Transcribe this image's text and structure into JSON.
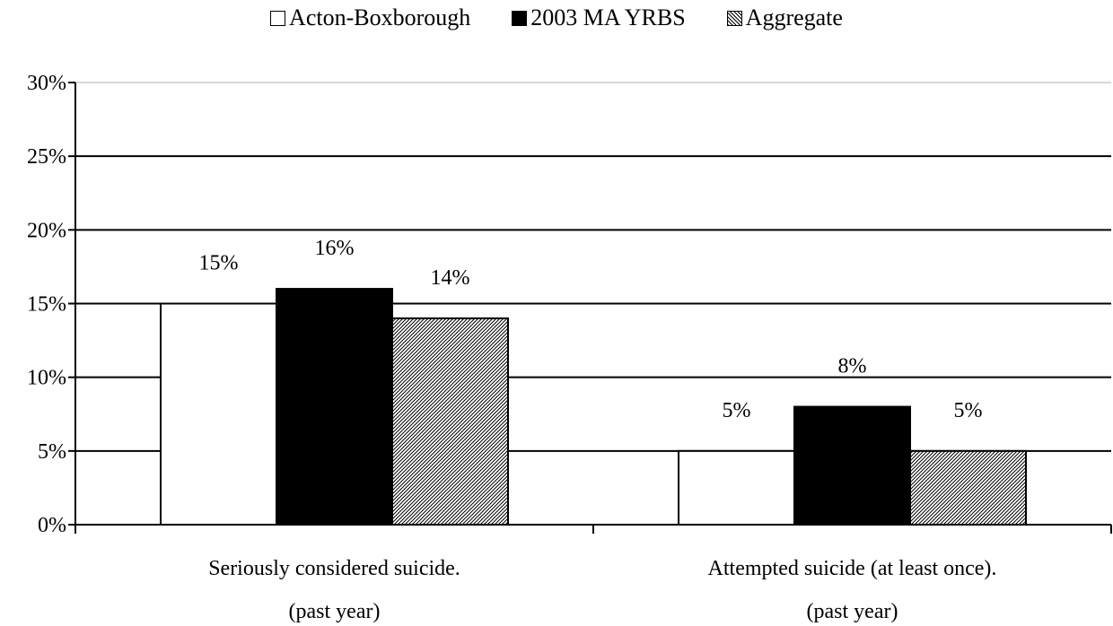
{
  "chart_data": {
    "type": "bar",
    "title": "",
    "xlabel": "",
    "ylabel": "",
    "ylim": [
      0,
      30
    ],
    "yticks": [
      "0%",
      "5%",
      "10%",
      "15%",
      "20%",
      "25%",
      "30%"
    ],
    "ytick_values": [
      0,
      5,
      10,
      15,
      20,
      25,
      30
    ],
    "grid": true,
    "legend_position": "top",
    "categories": [
      {
        "line1": "Seriously considered suicide.",
        "line2": "(past year)"
      },
      {
        "line1": "Attempted suicide (at least once).",
        "line2": "(past year)"
      }
    ],
    "series": [
      {
        "name": "Acton-Boxborough",
        "fill": "white",
        "color": "#ffffff",
        "values": [
          15,
          5
        ],
        "labels": [
          "15%",
          "5%"
        ]
      },
      {
        "name": "2003 MA YRBS",
        "fill": "black",
        "color": "#000000",
        "values": [
          16,
          8
        ],
        "labels": [
          "16%",
          "8%"
        ]
      },
      {
        "name": "Aggregate",
        "fill": "hatch",
        "color": "#808080",
        "values": [
          14,
          5
        ],
        "labels": [
          "14%",
          "5%"
        ]
      }
    ]
  }
}
